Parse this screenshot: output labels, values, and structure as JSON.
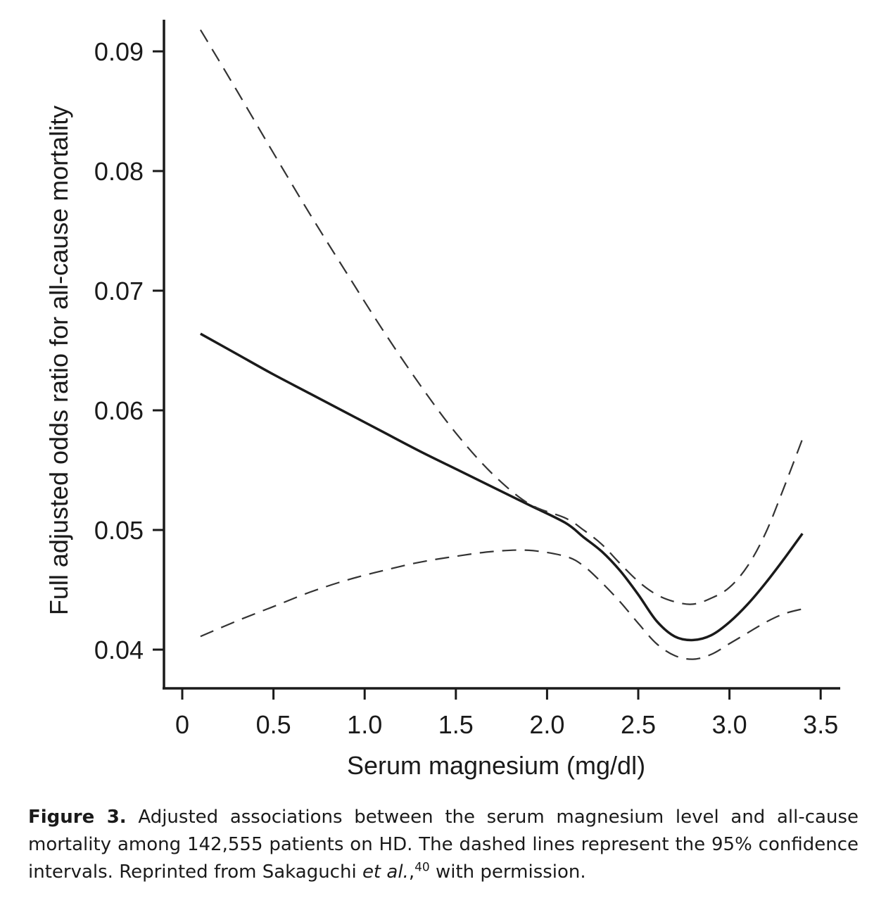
{
  "chart_data": {
    "type": "line",
    "xlabel": "Serum magnesium (mg/dl)",
    "ylabel": "Full adjusted odds ratio for all-cause mortality",
    "xlim": [
      0,
      3.5
    ],
    "ylim": [
      0.04,
      0.09
    ],
    "x_ticks": [
      "0",
      "0.5",
      "1.0",
      "1.5",
      "2.0",
      "2.5",
      "3.0",
      "3.5"
    ],
    "y_ticks": [
      "0.04",
      "0.05",
      "0.06",
      "0.07",
      "0.08",
      "0.09"
    ],
    "grid": false,
    "legend": "none",
    "series": [
      {
        "style": "solid",
        "color": "#1a1a1a",
        "x": [
          0.1,
          0.3,
          0.5,
          0.7,
          0.9,
          1.1,
          1.3,
          1.5,
          1.7,
          1.9,
          2.1,
          2.2,
          2.3,
          2.4,
          2.5,
          2.6,
          2.7,
          2.8,
          2.9,
          3.0,
          3.1,
          3.2,
          3.3,
          3.4
        ],
        "y": [
          0.0664,
          0.0647,
          0.063,
          0.0614,
          0.0598,
          0.0582,
          0.0566,
          0.0551,
          0.0536,
          0.0521,
          0.0506,
          0.0494,
          0.0482,
          0.0466,
          0.0446,
          0.0424,
          0.0411,
          0.0408,
          0.0412,
          0.0423,
          0.0438,
          0.0456,
          0.0476,
          0.0497
        ]
      },
      {
        "style": "dashed",
        "color": "#333333",
        "x": [
          0.1,
          0.3,
          0.5,
          0.7,
          0.9,
          1.1,
          1.3,
          1.5,
          1.7,
          1.9,
          2.1,
          2.2,
          2.3,
          2.4,
          2.5,
          2.6,
          2.7,
          2.8,
          2.9,
          3.0,
          3.1,
          3.2,
          3.3,
          3.4
        ],
        "y": [
          0.0918,
          0.0867,
          0.0815,
          0.0764,
          0.0715,
          0.0667,
          0.0622,
          0.0581,
          0.0547,
          0.0522,
          0.051,
          0.05,
          0.0488,
          0.0472,
          0.0457,
          0.0446,
          0.044,
          0.0438,
          0.0443,
          0.0452,
          0.047,
          0.0498,
          0.0536,
          0.0576
        ]
      },
      {
        "style": "dashed",
        "color": "#333333",
        "x": [
          0.1,
          0.3,
          0.5,
          0.7,
          0.9,
          1.1,
          1.3,
          1.5,
          1.7,
          1.9,
          2.1,
          2.2,
          2.3,
          2.4,
          2.5,
          2.6,
          2.7,
          2.8,
          2.9,
          3.0,
          3.1,
          3.2,
          3.3,
          3.4
        ],
        "y": [
          0.0411,
          0.0424,
          0.0436,
          0.0448,
          0.0458,
          0.0466,
          0.0473,
          0.0478,
          0.0482,
          0.0483,
          0.0478,
          0.047,
          0.0456,
          0.044,
          0.0422,
          0.0405,
          0.0395,
          0.0392,
          0.0396,
          0.0405,
          0.0414,
          0.0423,
          0.043,
          0.0434
        ]
      }
    ]
  },
  "caption": {
    "label": "Figure 3.",
    "text_part1": " Adjusted associations between the serum magnesium level and all-cause mortality among 142,555 patients on HD. The dashed lines represent the 95% confidence intervals. Reprinted from Sakaguchi ",
    "italic": "et al.",
    "text_part2": ",",
    "superscript": "40",
    "text_part3": " with permission."
  }
}
